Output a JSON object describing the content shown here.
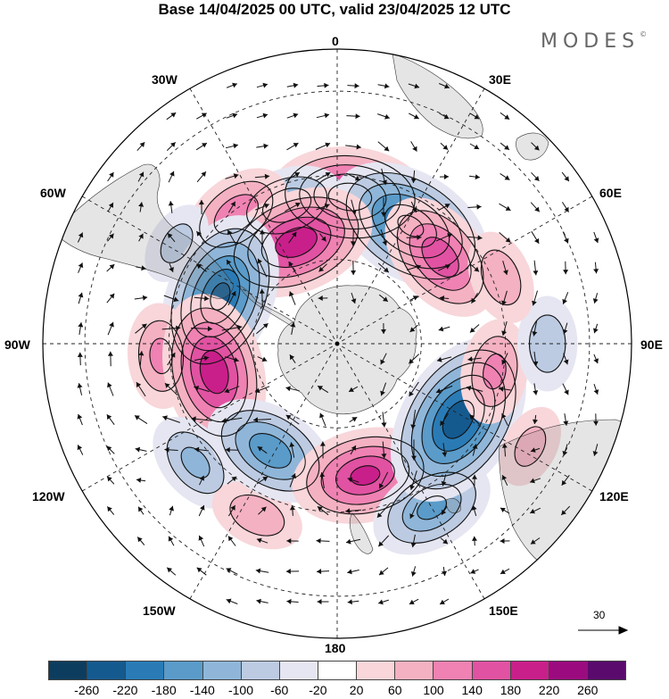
{
  "header": {
    "title": "Base 14/04/2025 00 UTC, valid 23/04/2025 12 UTC",
    "brand": "MODES",
    "brand_mark": "©"
  },
  "map": {
    "projection": "south-polar-stereographic",
    "longitude_labels": {
      "top": "0",
      "bottom": "180",
      "left": "90W",
      "right": "90E",
      "top_left": "30W",
      "top_right": "30E",
      "upper_left": "60W",
      "upper_right": "60E",
      "lower_left": "120W",
      "lower_right": "120E",
      "bottom_left": "150W",
      "bottom_right": "150E"
    },
    "vector_reference": "30",
    "colors": {
      "land": "#8a8a8a",
      "graticule": "#222222",
      "contour": "#111111"
    }
  },
  "colorbar": {
    "colors": [
      "#0d3d5e",
      "#145a8f",
      "#2a7bb5",
      "#5a9bc9",
      "#8fb6d9",
      "#bccbe2",
      "#e6e6f2",
      "#ffffff",
      "#f8d6da",
      "#f4b1c2",
      "#ef82b2",
      "#e152a2",
      "#c91f8a",
      "#9b0b7f",
      "#5a0a6d"
    ],
    "tick_labels": [
      "-260",
      "-220",
      "-180",
      "-140",
      "-100",
      "-60",
      "-20",
      "20",
      "60",
      "100",
      "140",
      "180",
      "220",
      "260"
    ]
  },
  "anomalies": [
    {
      "lat": -55,
      "lon": 5,
      "value": 200
    },
    {
      "lat": -57,
      "lon": 32,
      "value": -220
    },
    {
      "lat": -58,
      "lon": 50,
      "value": 160
    },
    {
      "lat": -55,
      "lon": -20,
      "value": -120
    },
    {
      "lat": -51,
      "lon": -38,
      "value": 120
    },
    {
      "lat": -64,
      "lon": -22,
      "value": 200
    },
    {
      "lat": -45,
      "lon": -58,
      "value": -60
    },
    {
      "lat": -60,
      "lon": -68,
      "value": -220
    },
    {
      "lat": -48,
      "lon": -94,
      "value": 100
    },
    {
      "lat": -60,
      "lon": -103,
      "value": 200
    },
    {
      "lat": -46,
      "lon": -130,
      "value": -100
    },
    {
      "lat": -45,
      "lon": -155,
      "value": 80
    },
    {
      "lat": -60,
      "lon": -148,
      "value": -160
    },
    {
      "lat": -58,
      "lon": 168,
      "value": 180
    },
    {
      "lat": -45,
      "lon": 150,
      "value": -140
    },
    {
      "lat": -56,
      "lon": 122,
      "value": -240
    },
    {
      "lat": -52,
      "lon": 100,
      "value": 100
    },
    {
      "lat": -40,
      "lon": 90,
      "value": -80
    },
    {
      "lat": -38,
      "lon": 118,
      "value": 60
    },
    {
      "lat": -48,
      "lon": 68,
      "value": 80
    }
  ]
}
